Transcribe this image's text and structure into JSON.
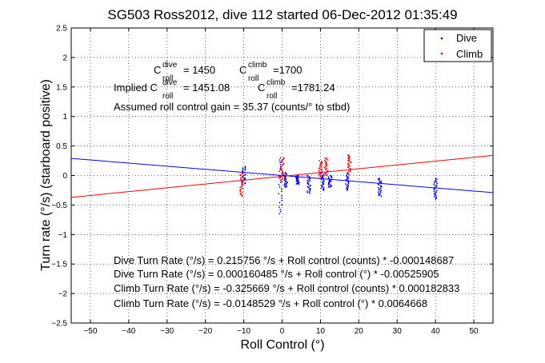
{
  "chart_data": {
    "type": "scatter",
    "title": "SG503 Ross2012, dive 112 started 06-Dec-2012 01:35:49",
    "xlabel": "Roll Control (°)",
    "ylabel": "Turn rate (°/s) (starboard positive)",
    "xlim": [
      -55,
      55
    ],
    "ylim": [
      -2.5,
      2.5
    ],
    "xticks": [
      -50,
      -40,
      -30,
      -20,
      -10,
      0,
      10,
      20,
      30,
      40,
      50
    ],
    "yticks": [
      -2.5,
      -2,
      -1.5,
      -1,
      -0.5,
      0,
      0.5,
      1,
      1.5,
      2,
      2.5
    ],
    "grid": true,
    "legend": {
      "position": "top-right",
      "entries": [
        {
          "label": "Dive",
          "color": "#0000ff"
        },
        {
          "label": "Climb",
          "color": "#ff0000"
        }
      ]
    },
    "series": [
      {
        "name": "Dive",
        "color": "#0000ff",
        "fit": {
          "intercept": 0.000160485,
          "slope": -0.00525905
        },
        "clusters": [
          {
            "x": -10,
            "ymin": -0.15,
            "ymax": 0.15
          },
          {
            "x": -0.5,
            "ymin": -0.65,
            "ymax": 0.3
          },
          {
            "x": 1,
            "ymin": -0.2,
            "ymax": 0.05
          },
          {
            "x": 4,
            "ymin": -0.15,
            "ymax": 0.0
          },
          {
            "x": 7,
            "ymin": -0.3,
            "ymax": 0.0
          },
          {
            "x": 10.5,
            "ymin": -0.25,
            "ymax": 0.05
          },
          {
            "x": 12.5,
            "ymin": -0.2,
            "ymax": 0.0
          },
          {
            "x": 17,
            "ymin": -0.25,
            "ymax": 0.05
          },
          {
            "x": 25.5,
            "ymin": -0.35,
            "ymax": -0.05
          },
          {
            "x": 40,
            "ymin": -0.4,
            "ymax": -0.05
          }
        ]
      },
      {
        "name": "Climb",
        "color": "#ff0000",
        "fit": {
          "intercept": -0.0148529,
          "slope": 0.0064668
        },
        "clusters": [
          {
            "x": -10.5,
            "ymin": -0.35,
            "ymax": 0.05
          },
          {
            "x": 0,
            "ymin": -0.1,
            "ymax": 0.3
          },
          {
            "x": 10,
            "ymin": -0.05,
            "ymax": 0.25
          },
          {
            "x": 11.5,
            "ymin": 0.0,
            "ymax": 0.3
          },
          {
            "x": 17.5,
            "ymin": 0.05,
            "ymax": 0.35
          }
        ]
      }
    ],
    "annotations": {
      "c_dive_label": "C",
      "c_dive_sup": "dive",
      "c_dive_sub": "roll",
      "c_dive_value": "= 1450",
      "c_climb_label": "C",
      "c_climb_sup": "climb",
      "c_climb_sub": "roll",
      "c_climb_value": "=1700",
      "implied_prefix": "Implied C",
      "implied_dive_sup": "dive",
      "implied_dive_sub": "roll",
      "implied_dive_value": "= 1451.08",
      "implied_climb_label": "C",
      "implied_climb_sup": "climb",
      "implied_climb_sub": "roll",
      "implied_climb_value": "=1781.24",
      "gain": "Assumed roll control gain = 35.37 (counts/° to stbd)",
      "fit1": "Dive Turn Rate (°/s) = 0.215756 °/s + Roll control (counts) * -0.000148687",
      "fit2": "Dive Turn Rate (°/s) = 0.000160485 °/s + Roll control (°) * -0.00525905",
      "fit3": "Climb Turn Rate (°/s) = -0.325669 °/s + Roll control (counts) * 0.000182833",
      "fit4": "Climb Turn Rate (°/s) = -0.0148529 °/s + Roll control (°) * 0.0064668"
    }
  }
}
